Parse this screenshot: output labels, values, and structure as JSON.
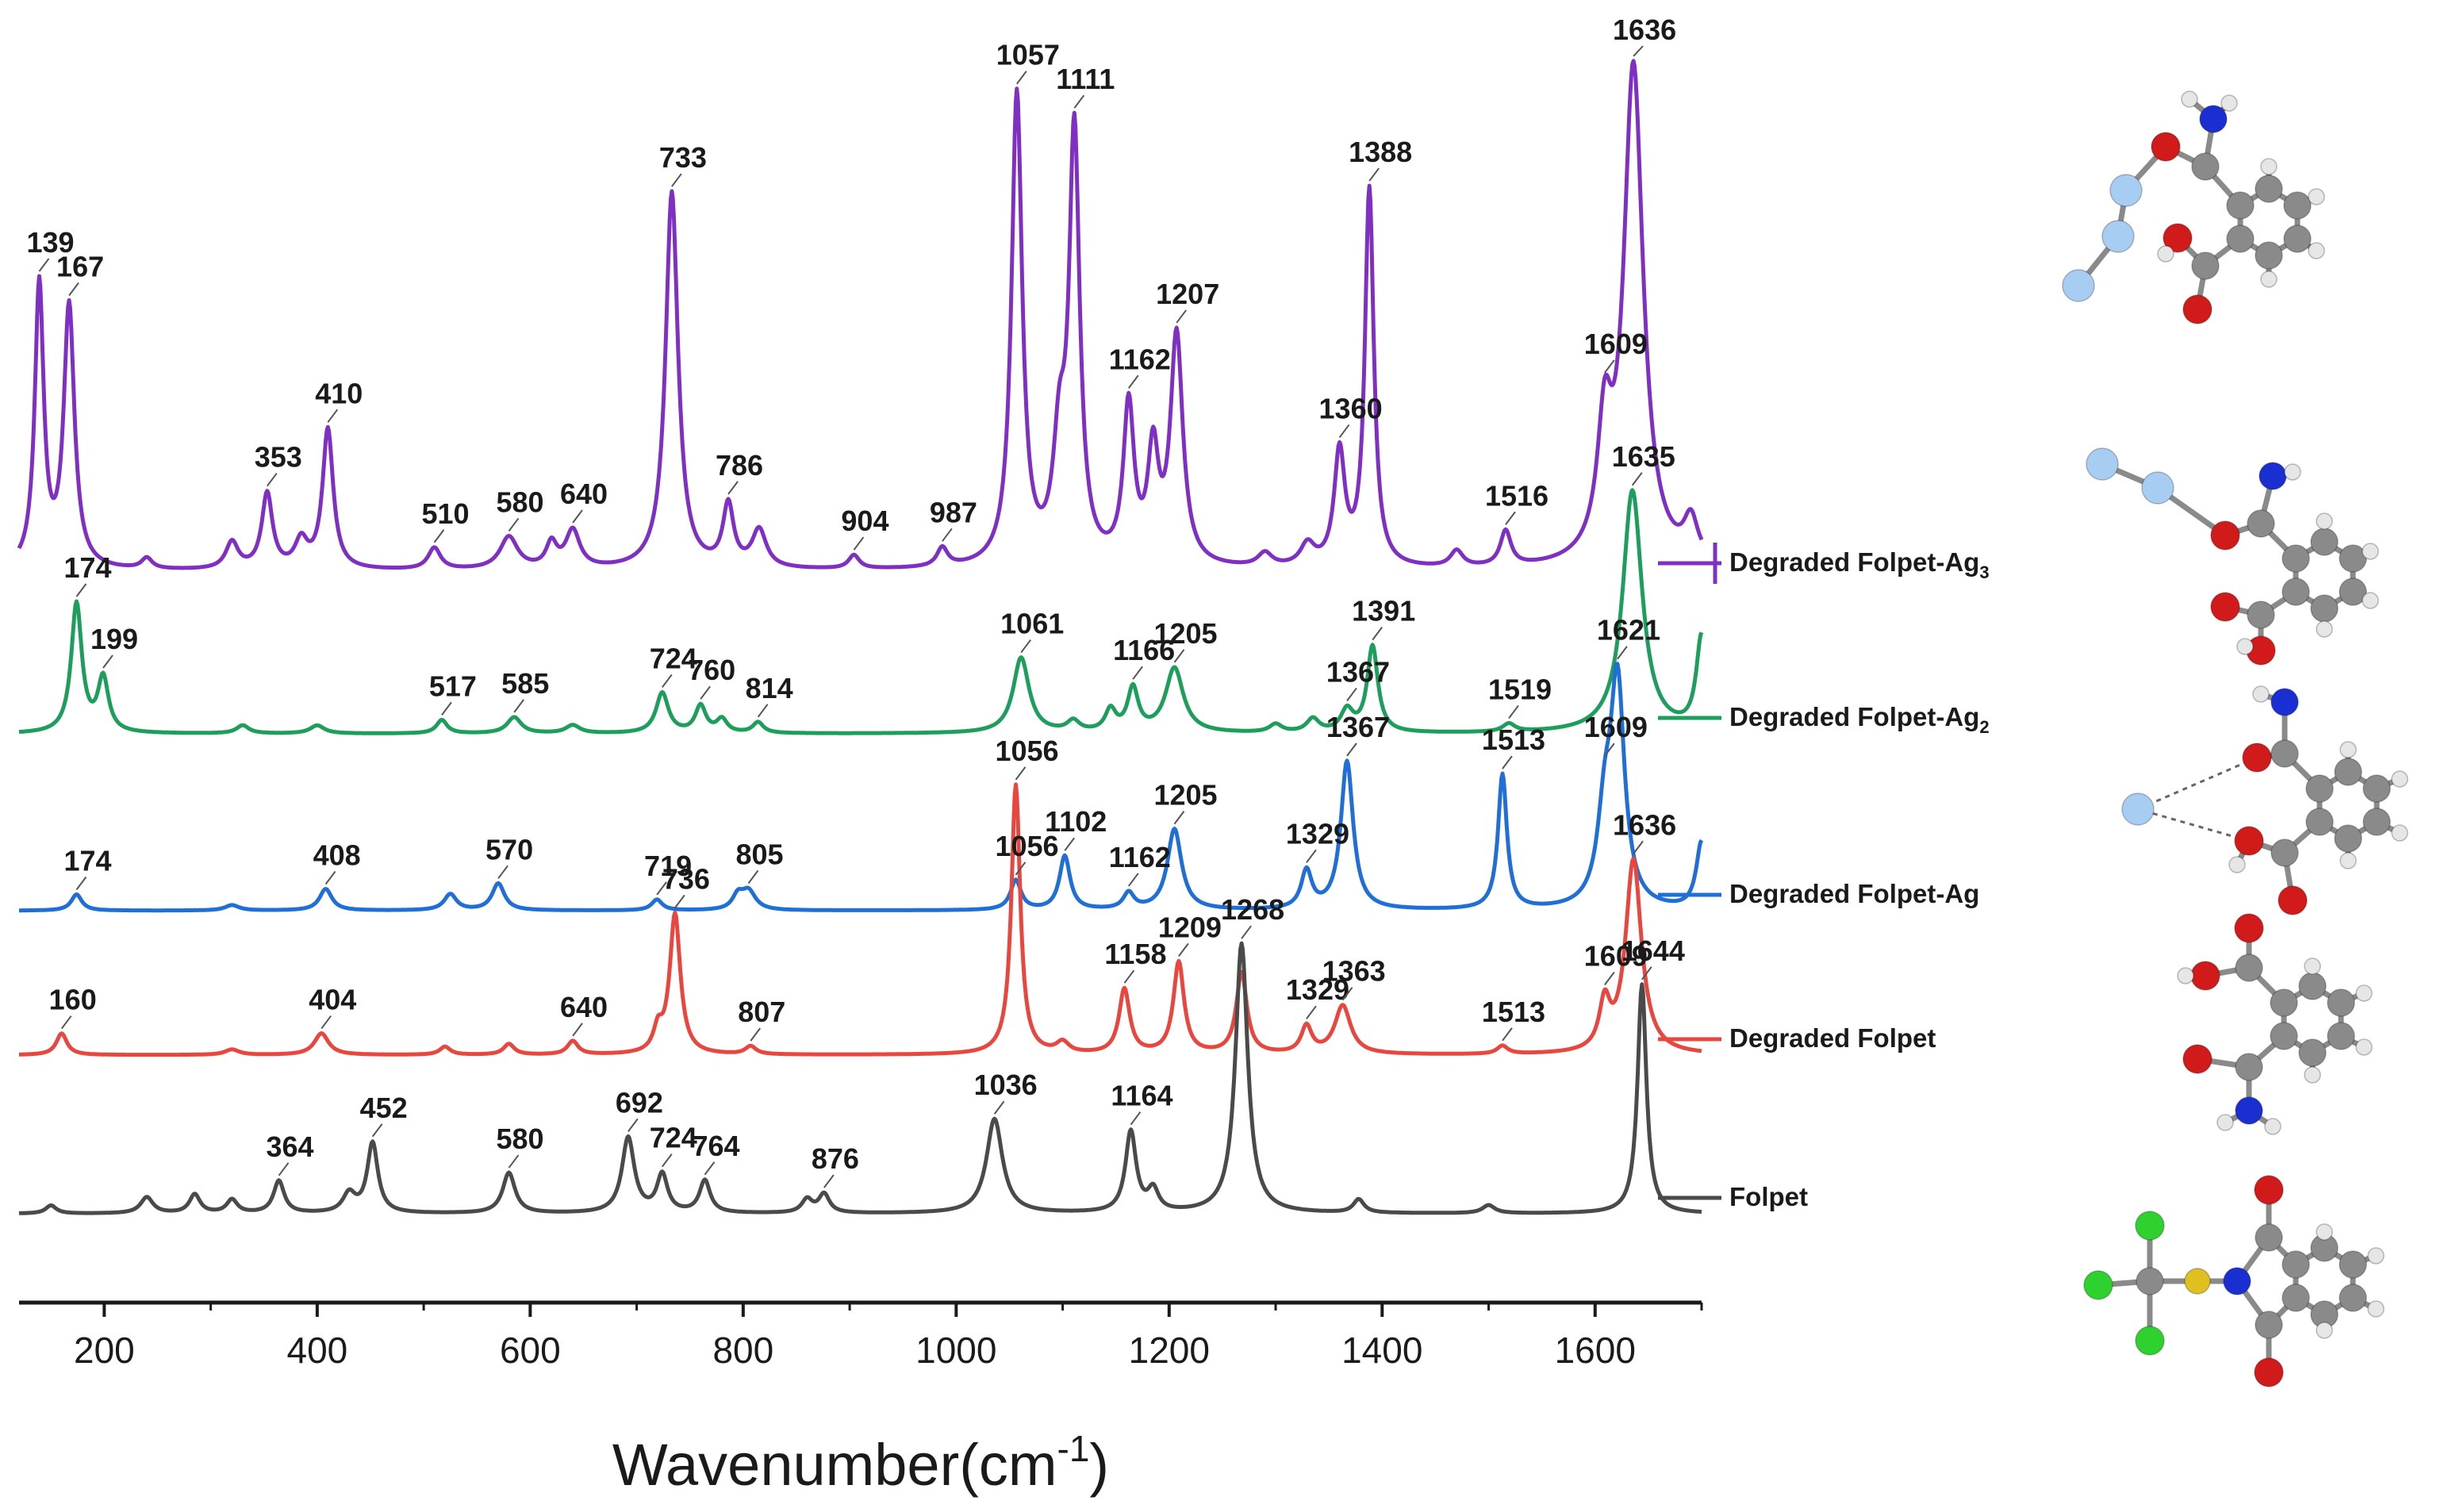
{
  "chart_data": {
    "type": "line",
    "title": "",
    "xlabel": "Wavenumber(cm",
    "xlabel_sup": "-1",
    "xlabel_close": ")",
    "ylabel": "",
    "xlim": [
      120,
      1700
    ],
    "xticks": [
      200,
      400,
      600,
      800,
      1000,
      1200,
      1400,
      1600
    ],
    "xtick_labels": [
      "200",
      "400",
      "600",
      "800",
      "1000",
      "1200",
      "1400",
      "1600"
    ],
    "legend": "right",
    "series": [
      {
        "name": "Degraded Folpet-Ag",
        "name_sub": "3",
        "color": "#7f2fc2",
        "baseline": 0.0,
        "peaks": [
          [
            139,
            1.05,
            5
          ],
          [
            167,
            0.97,
            6
          ],
          [
            240,
            0.04,
            6
          ],
          [
            320,
            0.1,
            7
          ],
          [
            353,
            0.28,
            6
          ],
          [
            385,
            0.1,
            7
          ],
          [
            410,
            0.52,
            6
          ],
          [
            510,
            0.08,
            7
          ],
          [
            580,
            0.12,
            10
          ],
          [
            620,
            0.09,
            6
          ],
          [
            640,
            0.14,
            8
          ],
          [
            733,
            1.4,
            7
          ],
          [
            786,
            0.23,
            6
          ],
          [
            815,
            0.14,
            8
          ],
          [
            904,
            0.05,
            6
          ],
          [
            987,
            0.07,
            6
          ],
          [
            1057,
            1.75,
            6
          ],
          [
            1097,
            0.4,
            7
          ],
          [
            1111,
            1.58,
            6
          ],
          [
            1162,
            0.58,
            6
          ],
          [
            1185,
            0.4,
            6
          ],
          [
            1207,
            0.85,
            7
          ],
          [
            1290,
            0.05,
            8
          ],
          [
            1330,
            0.08,
            8
          ],
          [
            1360,
            0.42,
            6
          ],
          [
            1388,
            1.4,
            5
          ],
          [
            1470,
            0.06,
            7
          ],
          [
            1516,
            0.13,
            6
          ],
          [
            1609,
            0.45,
            8
          ],
          [
            1636,
            1.85,
            11
          ],
          [
            1690,
            0.15,
            8
          ]
        ],
        "labels": [
          {
            "x": 139,
            "text": "139"
          },
          {
            "x": 167,
            "text": "167"
          },
          {
            "x": 353,
            "text": "353"
          },
          {
            "x": 410,
            "text": "410"
          },
          {
            "x": 510,
            "text": "510"
          },
          {
            "x": 580,
            "text": "580"
          },
          {
            "x": 640,
            "text": "640"
          },
          {
            "x": 733,
            "text": "733"
          },
          {
            "x": 786,
            "text": "786"
          },
          {
            "x": 904,
            "text": "904"
          },
          {
            "x": 987,
            "text": "987"
          },
          {
            "x": 1057,
            "text": "1057"
          },
          {
            "x": 1111,
            "text": "1111"
          },
          {
            "x": 1162,
            "text": "1162"
          },
          {
            "x": 1207,
            "text": "1207"
          },
          {
            "x": 1360,
            "text": "1360"
          },
          {
            "x": 1388,
            "text": "1388"
          },
          {
            "x": 1516,
            "text": "1516"
          },
          {
            "x": 1609,
            "text": "1609"
          },
          {
            "x": 1636,
            "text": "1636"
          }
        ]
      },
      {
        "name": "Degraded Folpet-Ag",
        "name_sub": "2",
        "color": "#1e9e5c",
        "baseline": 0.0,
        "peaks": [
          [
            174,
            0.48,
            6
          ],
          [
            199,
            0.2,
            6
          ],
          [
            330,
            0.03,
            7
          ],
          [
            400,
            0.03,
            8
          ],
          [
            517,
            0.05,
            6
          ],
          [
            585,
            0.06,
            8
          ],
          [
            640,
            0.03,
            8
          ],
          [
            724,
            0.15,
            7
          ],
          [
            760,
            0.1,
            6
          ],
          [
            780,
            0.05,
            6
          ],
          [
            814,
            0.04,
            6
          ],
          [
            1061,
            0.28,
            9
          ],
          [
            1110,
            0.04,
            7
          ],
          [
            1145,
            0.08,
            6
          ],
          [
            1166,
            0.16,
            6
          ],
          [
            1205,
            0.24,
            10
          ],
          [
            1300,
            0.03,
            7
          ],
          [
            1335,
            0.05,
            7
          ],
          [
            1367,
            0.08,
            7
          ],
          [
            1391,
            0.32,
            6
          ],
          [
            1519,
            0.03,
            7
          ],
          [
            1635,
            0.9,
            11
          ],
          [
            1700,
            0.35,
            6
          ]
        ],
        "labels": [
          {
            "x": 174,
            "text": "174"
          },
          {
            "x": 199,
            "text": "199"
          },
          {
            "x": 517,
            "text": "517"
          },
          {
            "x": 585,
            "text": "585"
          },
          {
            "x": 724,
            "text": "724"
          },
          {
            "x": 760,
            "text": "760"
          },
          {
            "x": 814,
            "text": "814"
          },
          {
            "x": 1061,
            "text": "1061"
          },
          {
            "x": 1166,
            "text": "1166"
          },
          {
            "x": 1205,
            "text": "1205"
          },
          {
            "x": 1367,
            "text": "1367"
          },
          {
            "x": 1391,
            "text": "1391"
          },
          {
            "x": 1519,
            "text": "1519"
          },
          {
            "x": 1635,
            "text": "1635"
          }
        ]
      },
      {
        "name": "Degraded Folpet-Ag",
        "name_sub": "",
        "color": "#1f6fd6",
        "baseline": 0.0,
        "peaks": [
          [
            174,
            0.06,
            6
          ],
          [
            320,
            0.02,
            8
          ],
          [
            408,
            0.08,
            7
          ],
          [
            525,
            0.06,
            7
          ],
          [
            570,
            0.1,
            7
          ],
          [
            719,
            0.04,
            6
          ],
          [
            795,
            0.05,
            6
          ],
          [
            805,
            0.07,
            8
          ],
          [
            1056,
            0.11,
            6
          ],
          [
            1102,
            0.2,
            6
          ],
          [
            1162,
            0.06,
            6
          ],
          [
            1205,
            0.3,
            8
          ],
          [
            1329,
            0.14,
            6
          ],
          [
            1367,
            0.55,
            7
          ],
          [
            1513,
            0.5,
            5
          ],
          [
            1609,
            0.3,
            8
          ],
          [
            1621,
            0.82,
            8
          ],
          [
            1700,
            0.25,
            6
          ]
        ],
        "labels": [
          {
            "x": 174,
            "text": "174"
          },
          {
            "x": 408,
            "text": "408"
          },
          {
            "x": 570,
            "text": "570"
          },
          {
            "x": 719,
            "text": "719"
          },
          {
            "x": 805,
            "text": "805"
          },
          {
            "x": 1056,
            "text": "1056"
          },
          {
            "x": 1102,
            "text": "1102"
          },
          {
            "x": 1162,
            "text": "1162"
          },
          {
            "x": 1205,
            "text": "1205"
          },
          {
            "x": 1329,
            "text": "1329"
          },
          {
            "x": 1367,
            "text": "1367"
          },
          {
            "x": 1513,
            "text": "1513"
          },
          {
            "x": 1609,
            "text": "1609"
          },
          {
            "x": 1621,
            "text": "1621"
          }
        ]
      },
      {
        "name": "Degraded Folpet",
        "name_sub": "",
        "color": "#e8473f",
        "baseline": 0.0,
        "peaks": [
          [
            160,
            0.08,
            6
          ],
          [
            320,
            0.02,
            8
          ],
          [
            404,
            0.08,
            8
          ],
          [
            520,
            0.03,
            6
          ],
          [
            580,
            0.04,
            6
          ],
          [
            640,
            0.05,
            6
          ],
          [
            720,
            0.08,
            5
          ],
          [
            736,
            0.52,
            6
          ],
          [
            807,
            0.03,
            6
          ],
          [
            1056,
            1.0,
            5
          ],
          [
            1100,
            0.04,
            7
          ],
          [
            1158,
            0.24,
            6
          ],
          [
            1209,
            0.34,
            6
          ],
          [
            1268,
            0.3,
            6
          ],
          [
            1329,
            0.1,
            6
          ],
          [
            1363,
            0.18,
            9
          ],
          [
            1513,
            0.03,
            6
          ],
          [
            1609,
            0.17,
            6
          ],
          [
            1636,
            0.72,
            9
          ]
        ],
        "labels": [
          {
            "x": 160,
            "text": "160"
          },
          {
            "x": 404,
            "text": "404"
          },
          {
            "x": 640,
            "text": "640"
          },
          {
            "x": 736,
            "text": "736"
          },
          {
            "x": 807,
            "text": "807"
          },
          {
            "x": 1056,
            "text": "1056"
          },
          {
            "x": 1158,
            "text": "1158"
          },
          {
            "x": 1209,
            "text": "1209"
          },
          {
            "x": 1329,
            "text": "1329"
          },
          {
            "x": 1363,
            "text": "1363"
          },
          {
            "x": 1513,
            "text": "1513"
          },
          {
            "x": 1609,
            "text": "1609"
          },
          {
            "x": 1636,
            "text": "1636"
          }
        ]
      },
      {
        "name": "Folpet",
        "name_sub": "",
        "color": "#4a4a4a",
        "baseline": 0.0,
        "peaks": [
          [
            150,
            0.03,
            6
          ],
          [
            240,
            0.06,
            7
          ],
          [
            285,
            0.07,
            6
          ],
          [
            320,
            0.05,
            6
          ],
          [
            364,
            0.12,
            6
          ],
          [
            430,
            0.07,
            7
          ],
          [
            452,
            0.26,
            6
          ],
          [
            580,
            0.15,
            7
          ],
          [
            692,
            0.28,
            7
          ],
          [
            724,
            0.14,
            6
          ],
          [
            764,
            0.12,
            6
          ],
          [
            860,
            0.05,
            6
          ],
          [
            876,
            0.07,
            6
          ],
          [
            1036,
            0.35,
            9
          ],
          [
            1164,
            0.3,
            6
          ],
          [
            1185,
            0.08,
            6
          ],
          [
            1268,
            1.0,
            7
          ],
          [
            1378,
            0.05,
            6
          ],
          [
            1500,
            0.03,
            7
          ],
          [
            1644,
            0.85,
            5
          ]
        ],
        "labels": [
          {
            "x": 364,
            "text": "364"
          },
          {
            "x": 452,
            "text": "452"
          },
          {
            "x": 580,
            "text": "580"
          },
          {
            "x": 692,
            "text": "692"
          },
          {
            "x": 724,
            "text": "724"
          },
          {
            "x": 764,
            "text": "764"
          },
          {
            "x": 876,
            "text": "876"
          },
          {
            "x": 1036,
            "text": "1036"
          },
          {
            "x": 1164,
            "text": "1164"
          },
          {
            "x": 1268,
            "text": "1268"
          },
          {
            "x": 1644,
            "text": "1644"
          }
        ]
      }
    ]
  },
  "molecule_atom_colors": {
    "carbon": "#8a8a8a",
    "hydrogen": "#e6e6e6",
    "oxygen": "#d11a1a",
    "nitrogen": "#1a2fd1",
    "silver": "#a8cdf2",
    "chlorine": "#2ed12e",
    "sulfur": "#e0c020"
  }
}
